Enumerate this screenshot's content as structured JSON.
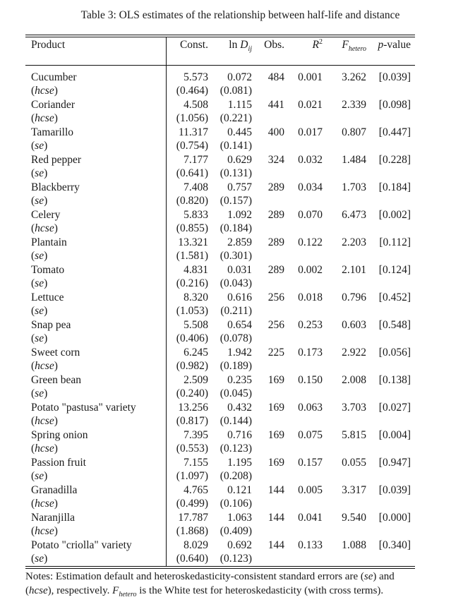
{
  "caption": "Table 3: OLS estimates of the relationship between half-life and distance",
  "headers": {
    "product": "Product",
    "const": "Const.",
    "lnd_prefix": "ln ",
    "lnd_var": "D",
    "lnd_sub": "ij",
    "obs": "Obs.",
    "r2_var": "R",
    "r2_sup": "2",
    "f_var": "F",
    "f_sub": "hetero",
    "p_var": "p",
    "p_suffix": "-value"
  },
  "rows": [
    {
      "product": "Cucumber",
      "se_type": "hcse",
      "const": "5.573",
      "lnd": "0.072",
      "const_se": "(0.464)",
      "lnd_se": "(0.081)",
      "obs": "484",
      "r2": "0.001",
      "f": "3.262",
      "p": "[0.039]"
    },
    {
      "product": "Coriander",
      "se_type": "hcse",
      "const": "4.508",
      "lnd": "1.115",
      "const_se": "(1.056)",
      "lnd_se": "(0.221)",
      "obs": "441",
      "r2": "0.021",
      "f": "2.339",
      "p": "[0.098]"
    },
    {
      "product": "Tamarillo",
      "se_type": "se",
      "const": "11.317",
      "lnd": "0.445",
      "const_se": "(0.754)",
      "lnd_se": "(0.141)",
      "obs": "400",
      "r2": "0.017",
      "f": "0.807",
      "p": "[0.447]"
    },
    {
      "product": "Red pepper",
      "se_type": "se",
      "const": "7.177",
      "lnd": "0.629",
      "const_se": "(0.641)",
      "lnd_se": "(0.131)",
      "obs": "324",
      "r2": "0.032",
      "f": "1.484",
      "p": "[0.228]"
    },
    {
      "product": "Blackberry",
      "se_type": "se",
      "const": "7.408",
      "lnd": "0.757",
      "const_se": "(0.820)",
      "lnd_se": "(0.157)",
      "obs": "289",
      "r2": "0.034",
      "f": "1.703",
      "p": "[0.184]"
    },
    {
      "product": "Celery",
      "se_type": "hcse",
      "const": "5.833",
      "lnd": "1.092",
      "const_se": "(0.855)",
      "lnd_se": "(0.184)",
      "obs": "289",
      "r2": "0.070",
      "f": "6.473",
      "p": "[0.002]"
    },
    {
      "product": "Plantain",
      "se_type": "se",
      "const": "13.321",
      "lnd": "2.859",
      "const_se": "(1.581)",
      "lnd_se": "(0.301)",
      "obs": "289",
      "r2": "0.122",
      "f": "2.203",
      "p": "[0.112]"
    },
    {
      "product": "Tomato",
      "se_type": "se",
      "const": "4.831",
      "lnd": "0.031",
      "const_se": "(0.216)",
      "lnd_se": "(0.043)",
      "obs": "289",
      "r2": "0.002",
      "f": "2.101",
      "p": "[0.124]"
    },
    {
      "product": "Lettuce",
      "se_type": "se",
      "const": "8.320",
      "lnd": "0.616",
      "const_se": "(1.053)",
      "lnd_se": "(0.211)",
      "obs": "256",
      "r2": "0.018",
      "f": "0.796",
      "p": "[0.452]"
    },
    {
      "product": "Snap pea",
      "se_type": "se",
      "const": "5.508",
      "lnd": "0.654",
      "const_se": "(0.406)",
      "lnd_se": "(0.078)",
      "obs": "256",
      "r2": "0.253",
      "f": "0.603",
      "p": "[0.548]"
    },
    {
      "product": "Sweet corn",
      "se_type": "hcse",
      "const": "6.245",
      "lnd": "1.942",
      "const_se": "(0.982)",
      "lnd_se": "(0.189)",
      "obs": "225",
      "r2": "0.173",
      "f": "2.922",
      "p": "[0.056]"
    },
    {
      "product": "Green bean",
      "se_type": "se",
      "const": "2.509",
      "lnd": "0.235",
      "const_se": "(0.240)",
      "lnd_se": "(0.045)",
      "obs": "169",
      "r2": "0.150",
      "f": "2.008",
      "p": "[0.138]"
    },
    {
      "product": "Potato \"pastusa\" variety",
      "se_type": "hcse",
      "const": "13.256",
      "lnd": "0.432",
      "const_se": "(0.817)",
      "lnd_se": "(0.144)",
      "obs": "169",
      "r2": "0.063",
      "f": "3.703",
      "p": "[0.027]"
    },
    {
      "product": "Spring onion",
      "se_type": "hcse",
      "const": "7.395",
      "lnd": "0.716",
      "const_se": "(0.553)",
      "lnd_se": "(0.123)",
      "obs": "169",
      "r2": "0.075",
      "f": "5.815",
      "p": "[0.004]"
    },
    {
      "product": "Passion fruit",
      "se_type": "se",
      "const": "7.155",
      "lnd": "1.195",
      "const_se": "(1.097)",
      "lnd_se": "(0.208)",
      "obs": "169",
      "r2": "0.157",
      "f": "0.055",
      "p": "[0.947]"
    },
    {
      "product": "Granadilla",
      "se_type": "hcse",
      "const": "4.765",
      "lnd": "0.121",
      "const_se": "(0.499)",
      "lnd_se": "(0.106)",
      "obs": "144",
      "r2": "0.005",
      "f": "3.317",
      "p": "[0.039]"
    },
    {
      "product": "Naranjilla",
      "se_type": "hcse",
      "const": "17.787",
      "lnd": "1.063",
      "const_se": "(1.868)",
      "lnd_se": "(0.409)",
      "obs": "144",
      "r2": "0.041",
      "f": "9.540",
      "p": "[0.000]"
    },
    {
      "product": "Potato \"criolla\" variety",
      "se_type": "se",
      "const": "8.029",
      "lnd": "0.692",
      "const_se": "(0.640)",
      "lnd_se": "(0.123)",
      "obs": "144",
      "r2": "0.133",
      "f": "1.088",
      "p": "[0.340]"
    }
  ],
  "notes": {
    "part1": "Notes: Estimation default and heteroskedasticity-consistent standard errors are (",
    "se": "se",
    "part2": ") and (",
    "hcse": "hcse",
    "part3": "), respectively. ",
    "f_var": "F",
    "f_sub": "hetero",
    "part4": " is the White test for heteroskedasticity (with cross terms)."
  }
}
